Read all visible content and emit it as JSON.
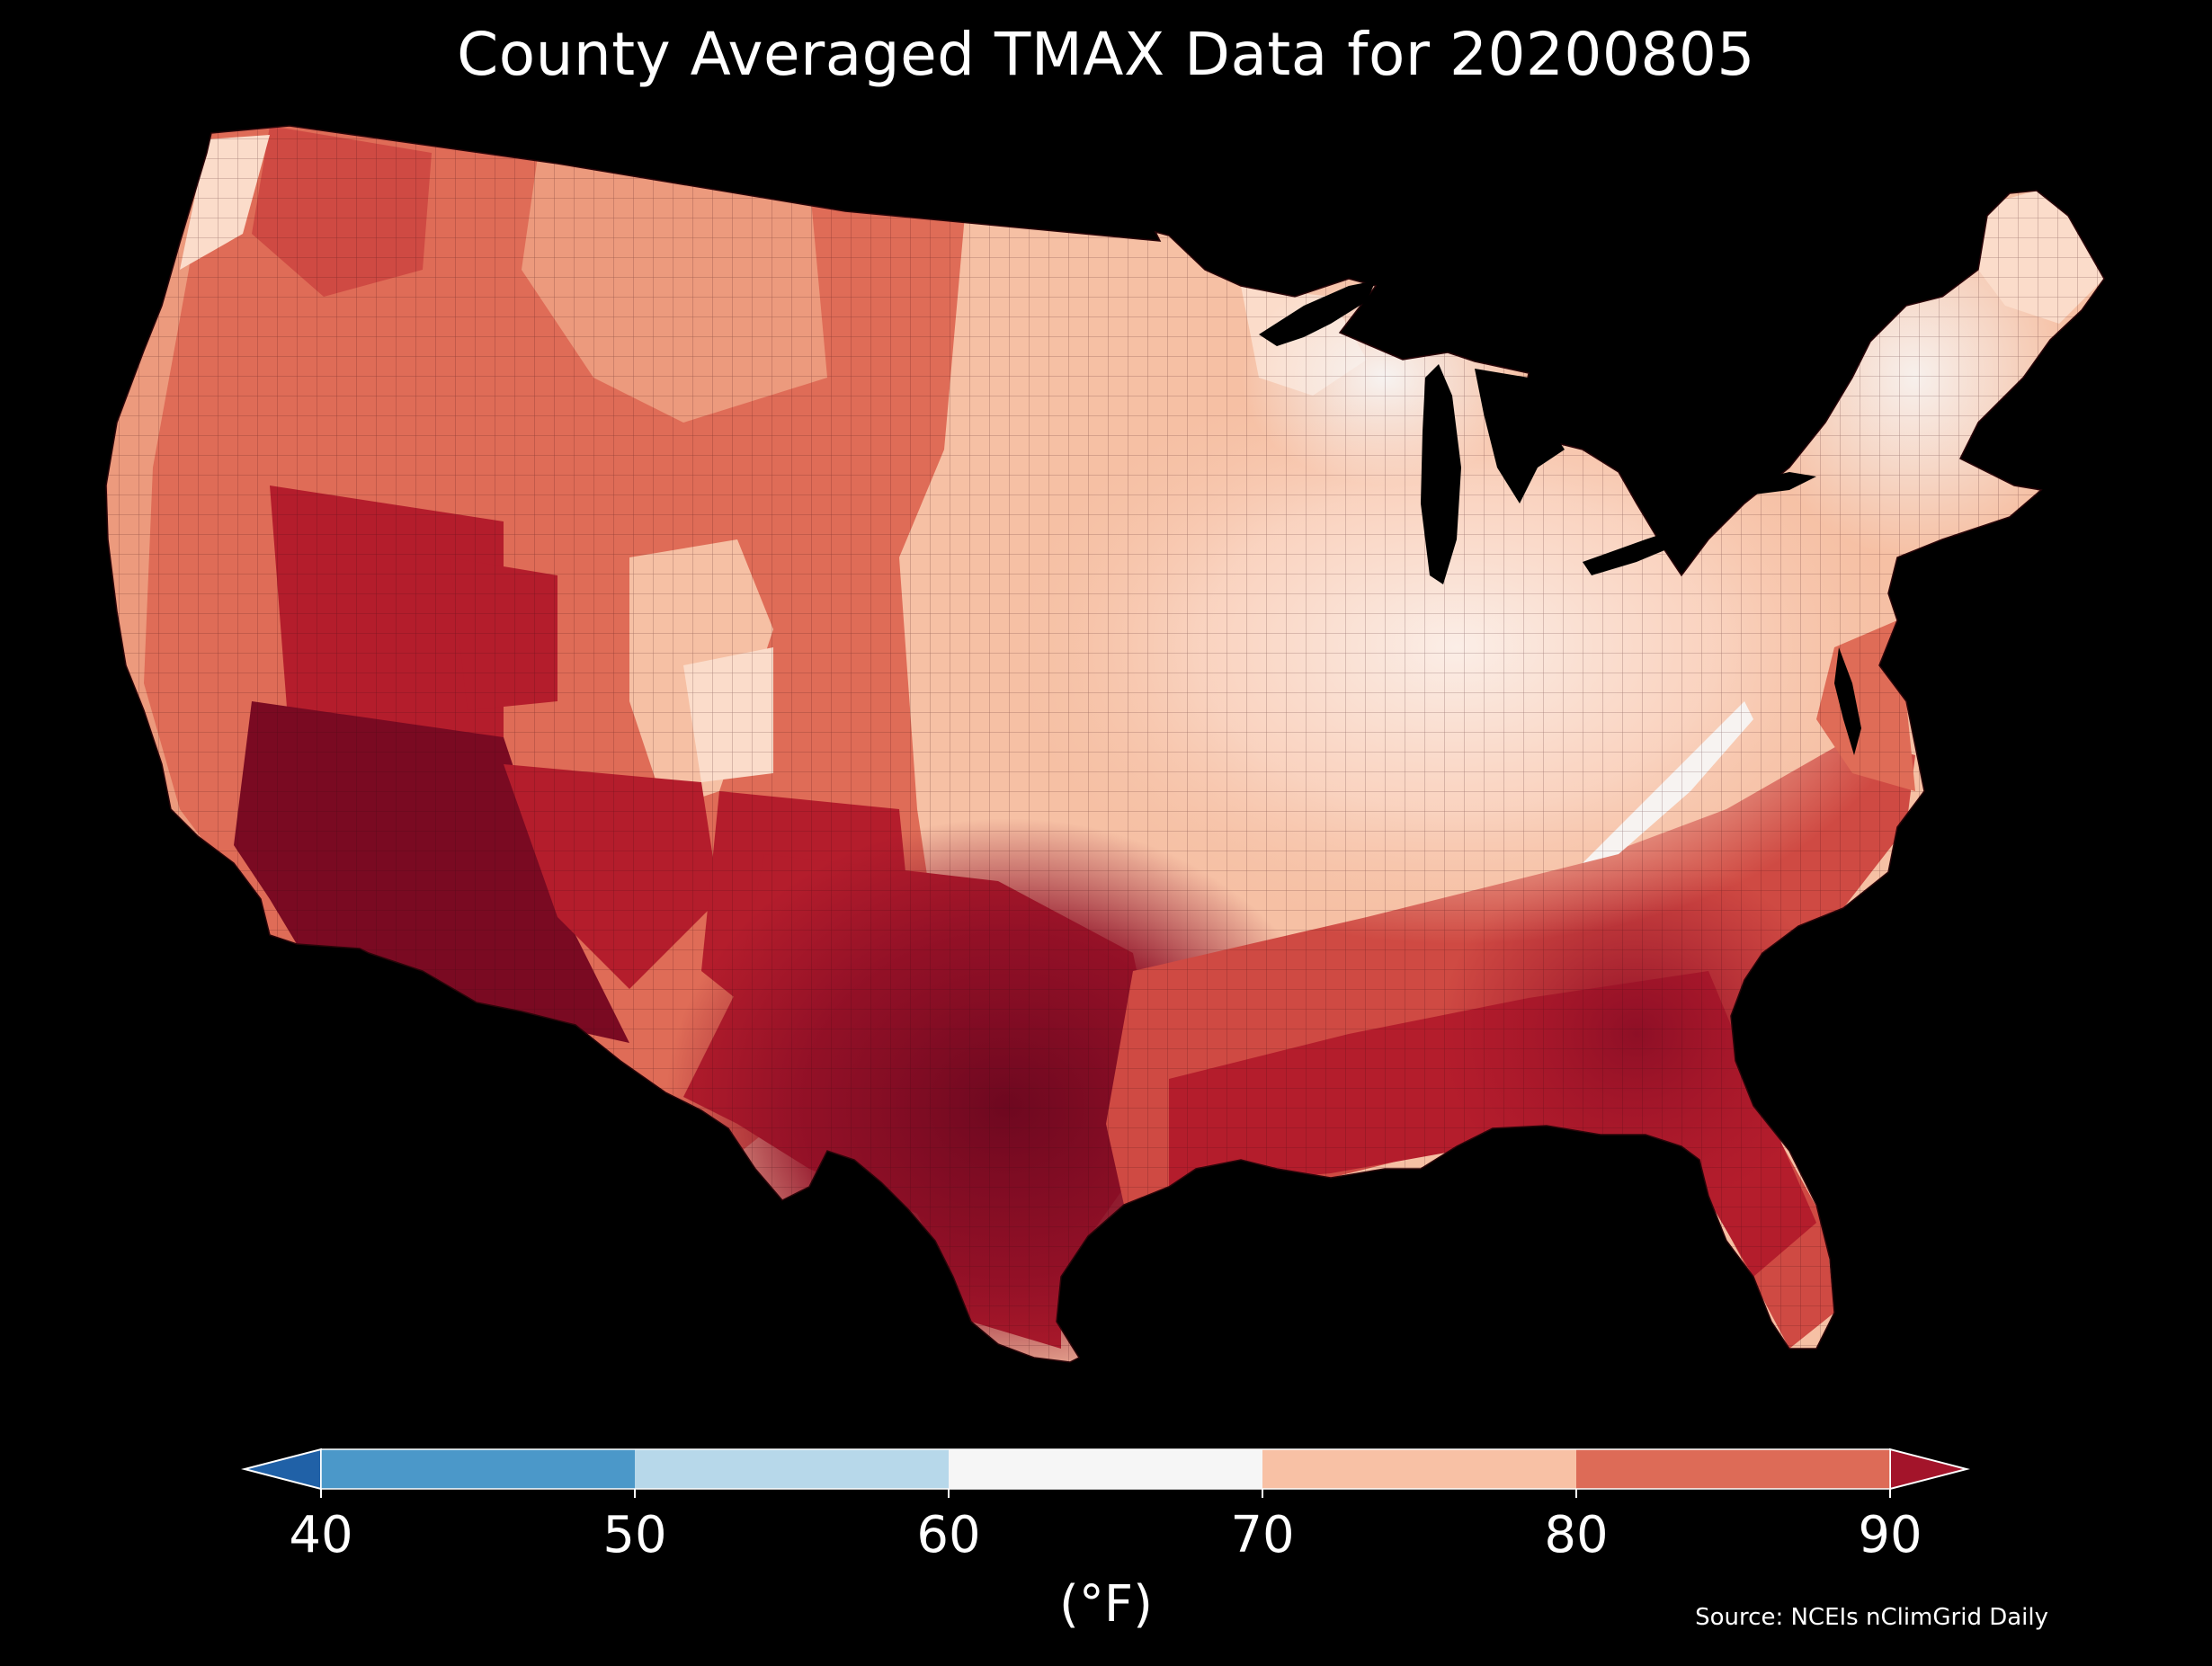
{
  "title": "County Averaged TMAX Data for 20200805",
  "colorbar": {
    "ticks": [
      "40",
      "50",
      "60",
      "70",
      "80",
      "90"
    ],
    "unit": "(°F)",
    "bins": [
      {
        "from": 40,
        "to": 50,
        "color": "#4b98c9"
      },
      {
        "from": 50,
        "to": 60,
        "color": "#b7d8ea"
      },
      {
        "from": 60,
        "to": 70,
        "color": "#f6f6f6"
      },
      {
        "from": 70,
        "to": 80,
        "color": "#f8c1a5"
      },
      {
        "from": 80,
        "to": 90,
        "color": "#dd6b57"
      }
    ],
    "under_color": "#2061a7",
    "over_color": "#a3142a"
  },
  "source": "Source: NCEIs nClimGrid Daily",
  "palette": {
    "over_90": "#7a0a22",
    "high_80s": "#b41d2c",
    "mid_80s": "#cf4a43",
    "low_80s": "#df6c57",
    "high_70s": "#ec9a7d",
    "mid_70s": "#f6c0a4",
    "low_70s": "#fbdcca",
    "upper_60s": "#f7f3f1"
  }
}
